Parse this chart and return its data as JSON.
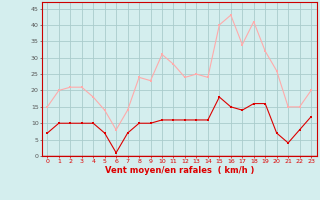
{
  "x": [
    0,
    1,
    2,
    3,
    4,
    5,
    6,
    7,
    8,
    9,
    10,
    11,
    12,
    13,
    14,
    15,
    16,
    17,
    18,
    19,
    20,
    21,
    22,
    23
  ],
  "wind_mean": [
    7,
    10,
    10,
    10,
    10,
    7,
    1,
    7,
    10,
    10,
    11,
    11,
    11,
    11,
    11,
    18,
    15,
    14,
    16,
    16,
    7,
    4,
    8,
    12
  ],
  "wind_gust": [
    15,
    20,
    21,
    21,
    18,
    14,
    8,
    14,
    24,
    23,
    31,
    28,
    24,
    25,
    24,
    40,
    43,
    34,
    41,
    32,
    26,
    15,
    15,
    20
  ],
  "mean_color": "#dd0000",
  "gust_color": "#ffaaaa",
  "bg_color": "#d4eeee",
  "grid_color": "#aacccc",
  "xlabel": "Vent moyen/en rafales  ( km/h )",
  "xlabel_color": "#dd0000",
  "yticks": [
    0,
    5,
    10,
    15,
    20,
    25,
    30,
    35,
    40,
    45
  ],
  "xticks": [
    0,
    1,
    2,
    3,
    4,
    5,
    6,
    7,
    8,
    9,
    10,
    11,
    12,
    13,
    14,
    15,
    16,
    17,
    18,
    19,
    20,
    21,
    22,
    23
  ],
  "ylim": [
    0,
    47
  ],
  "xlim": [
    -0.5,
    23.5
  ]
}
